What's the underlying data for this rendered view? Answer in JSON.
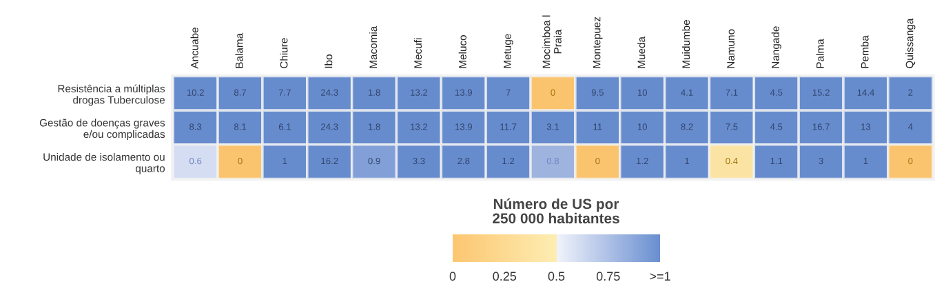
{
  "chart_data": {
    "type": "heatmap",
    "clabel": "Número de US por\n250 000 habitantes",
    "categories": [
      "Ancuabe",
      "Balama",
      "Chiure",
      "Ibo",
      "Macomia",
      "Mecufi",
      "Meluco",
      "Metuge",
      "Mocimboa l\nPraia",
      "Montepuez",
      "Mueda",
      "Muidumbe",
      "Namuno",
      "Nangade",
      "Palma",
      "Pemba",
      "Quissanga"
    ],
    "y_categories": [
      "Resistência a múltiplas\ndrogas Tuberculose",
      "Gestão de doenças graves\ne/ou complicadas",
      "Unidade de isolamento ou\nquarto"
    ],
    "cells": [
      [
        10.2,
        8.7,
        7.7,
        24.3,
        1.8,
        13.2,
        13.9,
        7,
        0,
        9.5,
        10,
        4.1,
        7.1,
        4.5,
        15.2,
        14.4,
        2
      ],
      [
        8.3,
        8.1,
        6.1,
        24.3,
        1.8,
        13.2,
        13.9,
        11.7,
        3.1,
        11,
        10,
        8.2,
        7.5,
        4.5,
        16.7,
        13,
        4
      ],
      [
        0.6,
        0,
        1,
        16.2,
        0.9,
        3.3,
        2.8,
        1.2,
        0.8,
        0,
        1.2,
        1,
        0.4,
        1.1,
        3,
        1,
        0
      ]
    ],
    "data_labels": true,
    "clim": [
      0,
      1
    ],
    "cticks": [
      0,
      0.25,
      0.5,
      0.75,
      {
        "value": 1,
        "label": ">=1"
      }
    ]
  }
}
